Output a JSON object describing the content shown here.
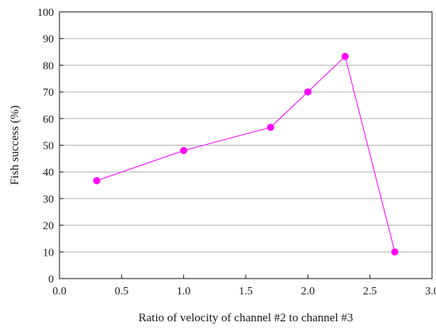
{
  "chart_data": {
    "type": "line",
    "title": "",
    "xlabel": "Ratio of  velocity of channel #2 to channel #3",
    "ylabel": "Fish success (%)",
    "xlim": [
      0.0,
      3.0
    ],
    "ylim": [
      0,
      100
    ],
    "x_ticks": [
      "0.0",
      "0.5",
      "1.0",
      "1.5",
      "2.0",
      "2.5",
      "3.0"
    ],
    "y_ticks": [
      "0",
      "10",
      "20",
      "30",
      "40",
      "50",
      "60",
      "70",
      "80",
      "90",
      "100"
    ],
    "grid": true,
    "series": [
      {
        "color": "#ff00ff",
        "x": [
          0.3,
          1.0,
          1.7,
          2.0,
          2.3,
          2.7
        ],
        "y": [
          36.7,
          48.0,
          56.7,
          70.0,
          83.3,
          10.0
        ]
      }
    ]
  }
}
